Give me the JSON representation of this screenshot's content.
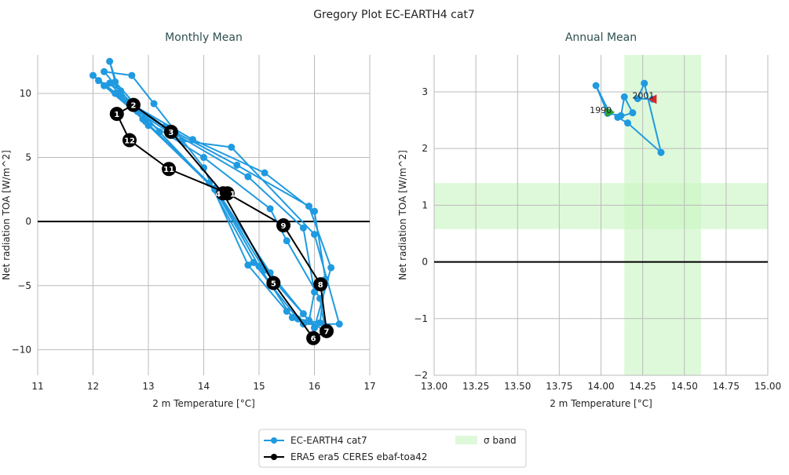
{
  "title": "Gregory Plot EC-EARTH4 cat7",
  "legend": {
    "items": [
      "EC-EARTH4 cat7",
      "ERA5 era5 CERES ebaf-toa42",
      "σ band"
    ],
    "placement": "bottom-center"
  },
  "colors": {
    "model": "#1f9ae0",
    "obs": "#000000",
    "band": "#c8f5c0",
    "start": "#2ca02c",
    "end": "#d62728"
  },
  "chart_data": [
    {
      "type": "line",
      "title": "Monthly Mean",
      "xlabel": "2 m Temperature [°C]",
      "ylabel": "Net radiation TOA [W/m^2]",
      "xlim": [
        11,
        17
      ],
      "ylim": [
        -12,
        13
      ],
      "grid": true,
      "xticks": [
        "11",
        "12",
        "13",
        "14",
        "15",
        "16",
        "17"
      ],
      "xtick_values": [
        11,
        12,
        13,
        14,
        15,
        16,
        17
      ],
      "yticks": [
        "−10",
        "−5",
        "0",
        "5",
        "10"
      ],
      "ytick_values": [
        -10,
        -5,
        0,
        5,
        10
      ],
      "hline": 0,
      "series": [
        {
          "name": "EC-EARTH4 cat7",
          "cycles": [
            [
              [
                12.3,
                10.8
              ],
              [
                12.5,
                10.2
              ],
              [
                13.0,
                7.5
              ],
              [
                14.2,
                2.5
              ],
              [
                15.0,
                -3.5
              ],
              [
                15.6,
                -7.5
              ],
              [
                15.9,
                -7.8
              ],
              [
                16.0,
                -5.5
              ],
              [
                15.8,
                -0.5
              ],
              [
                14.8,
                3.5
              ],
              [
                13.5,
                6.8
              ],
              [
                12.7,
                9.0
              ]
            ],
            [
              [
                12.0,
                11.4
              ],
              [
                12.2,
                10.6
              ],
              [
                12.9,
                8.0
              ],
              [
                14.1,
                3.0
              ],
              [
                14.9,
                -3.2
              ],
              [
                15.7,
                -7.6
              ],
              [
                16.1,
                -7.9
              ],
              [
                16.2,
                -4.5
              ],
              [
                16.0,
                0.8
              ],
              [
                15.1,
                3.8
              ],
              [
                13.8,
                6.4
              ],
              [
                12.6,
                9.4
              ]
            ],
            [
              [
                12.3,
                12.5
              ],
              [
                12.4,
                10.9
              ],
              [
                13.2,
                7.0
              ],
              [
                14.3,
                2.0
              ],
              [
                15.2,
                -4.0
              ],
              [
                15.8,
                -7.2
              ],
              [
                16.0,
                -8.3
              ],
              [
                16.3,
                -3.6
              ],
              [
                15.9,
                1.2
              ],
              [
                14.6,
                4.4
              ],
              [
                13.3,
                7.4
              ],
              [
                12.5,
                9.8
              ]
            ],
            [
              [
                12.2,
                11.7
              ],
              [
                12.7,
                11.4
              ],
              [
                13.1,
                9.2
              ],
              [
                14.0,
                4.2
              ],
              [
                14.8,
                -3.4
              ],
              [
                15.5,
                -7.0
              ],
              [
                15.8,
                -8.0
              ],
              [
                16.45,
                -8.0
              ],
              [
                16.0,
                -1.0
              ],
              [
                14.5,
                5.8
              ],
              [
                13.6,
                6.3
              ],
              [
                12.8,
                8.6
              ]
            ],
            [
              [
                12.1,
                11.0
              ],
              [
                12.4,
                10.0
              ],
              [
                12.95,
                7.8
              ],
              [
                14.2,
                2.6
              ],
              [
                15.1,
                -3.8
              ],
              [
                15.9,
                -7.7
              ],
              [
                16.2,
                -8.6
              ],
              [
                16.1,
                -6.0
              ],
              [
                15.5,
                -1.5
              ],
              [
                15.2,
                1.0
              ],
              [
                14.0,
                5.0
              ],
              [
                12.9,
                8.0
              ]
            ]
          ]
        },
        {
          "name": "ERA5 era5 CERES ebaf-toa42",
          "months": [
            "1",
            "2",
            "3",
            "4",
            "5",
            "6",
            "7",
            "8",
            "9",
            "10",
            "11",
            "12"
          ],
          "points": [
            [
              12.43,
              8.4
            ],
            [
              12.73,
              9.1
            ],
            [
              13.41,
              7.0
            ],
            [
              14.35,
              2.2
            ],
            [
              15.26,
              -4.8
            ],
            [
              15.98,
              -9.1
            ],
            [
              16.22,
              -8.55
            ],
            [
              16.11,
              -4.9
            ],
            [
              15.44,
              -0.3
            ],
            [
              14.43,
              2.2
            ],
            [
              13.37,
              4.1
            ],
            [
              12.66,
              6.35
            ]
          ]
        }
      ]
    },
    {
      "type": "line",
      "title": "Annual Mean",
      "xlabel": "2 m Temperature [°C]",
      "ylabel": "Net radiation TOA [W/m^2]",
      "xlim": [
        13,
        15
      ],
      "ylim": [
        -2,
        3.65
      ],
      "grid": true,
      "xticks": [
        "13.00",
        "13.25",
        "13.50",
        "13.75",
        "14.00",
        "14.25",
        "14.50",
        "14.75",
        "15.00"
      ],
      "xtick_values": [
        13,
        13.25,
        13.5,
        13.75,
        14,
        14.25,
        14.5,
        14.75,
        15
      ],
      "yticks": [
        "−2",
        "−1",
        "0",
        "1",
        "2",
        "3"
      ],
      "ytick_values": [
        -2,
        -1,
        0,
        1,
        2,
        3
      ],
      "hline": 0,
      "sigma_band": {
        "x": [
          14.14,
          14.6
        ],
        "y": [
          0.58,
          1.39
        ]
      },
      "series": [
        {
          "name": "EC-EARTH4 cat7",
          "points": [
            [
              14.05,
              2.64
            ],
            [
              13.97,
              3.11
            ],
            [
              14.04,
              2.62
            ],
            [
              14.12,
              2.58
            ],
            [
              14.14,
              2.91
            ],
            [
              14.19,
              2.63
            ],
            [
              14.1,
              2.55
            ],
            [
              14.16,
              2.45
            ],
            [
              14.36,
              1.93
            ],
            [
              14.26,
              3.15
            ],
            [
              14.22,
              2.88
            ],
            [
              14.31,
              2.87
            ]
          ]
        }
      ],
      "annotations": [
        "1990",
        "2001"
      ]
    }
  ]
}
